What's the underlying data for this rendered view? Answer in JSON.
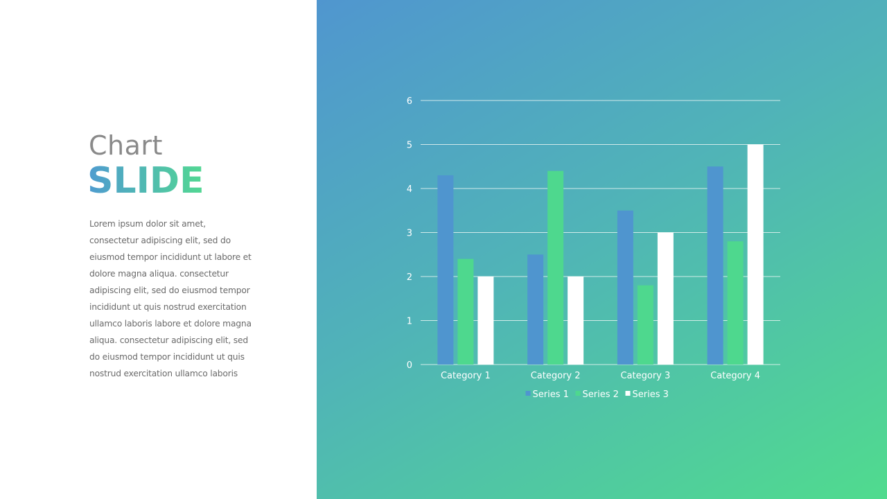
{
  "slide": {
    "title_line1": "Chart",
    "title_line2": "SLIDE",
    "body": "Lorem ipsum dolor sit amet, consectetur adipiscing elit, sed do eiusmod tempor incididunt ut labore et dolore magna aliqua. consectetur adipiscing elit, sed do eiusmod tempor incididunt ut quis nostrud exercitation ullamco laboris labore et dolore magna aliqua. consectetur adipiscing elit, sed do eiusmod tempor incididunt ut quis nostrud exercitation ullamco laboris"
  },
  "colors": {
    "series1": "#4f95cf",
    "series2": "#4ed88e",
    "series3": "#ffffff",
    "gridline": "#e8f4f2"
  },
  "chart_data": {
    "type": "bar",
    "categories": [
      "Category 1",
      "Category 2",
      "Category 3",
      "Category 4"
    ],
    "series": [
      {
        "name": "Series 1",
        "values": [
          4.3,
          2.5,
          3.5,
          4.5
        ]
      },
      {
        "name": "Series 2",
        "values": [
          2.4,
          4.4,
          1.8,
          2.8
        ]
      },
      {
        "name": "Series 3",
        "values": [
          2,
          2,
          3,
          5
        ]
      }
    ],
    "yticks": [
      "0",
      "1",
      "2",
      "3",
      "4",
      "5",
      "6"
    ],
    "ylim": [
      0,
      6
    ],
    "grid": true,
    "legend": "bottom"
  }
}
